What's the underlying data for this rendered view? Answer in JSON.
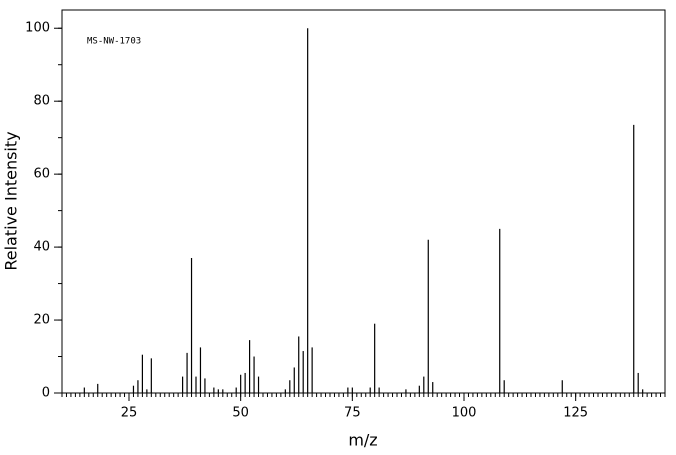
{
  "chart_data": {
    "type": "bar",
    "annotation": "MS-NW-1703",
    "x_label": "m/z",
    "y_label": "Relative Intensity",
    "x": [
      15,
      18,
      26,
      27,
      28,
      29,
      30,
      37,
      38,
      39,
      40,
      41,
      42,
      44,
      45,
      46,
      49,
      50,
      51,
      52,
      53,
      54,
      60,
      61,
      62,
      63,
      64,
      65,
      66,
      74,
      75,
      79,
      80,
      81,
      87,
      90,
      91,
      92,
      93,
      108,
      109,
      122,
      138,
      139,
      140
    ],
    "values": [
      1.5,
      2.5,
      2,
      3.5,
      10.5,
      1,
      9.5,
      4.5,
      11,
      37,
      4.5,
      12.5,
      4,
      1.5,
      1,
      1,
      1.5,
      5,
      5.5,
      14.5,
      10,
      4.5,
      1,
      3.5,
      7,
      15.5,
      11.5,
      100,
      12.5,
      1.5,
      1.5,
      1.5,
      19,
      1.5,
      1,
      2,
      4.5,
      42,
      3,
      45,
      3.5,
      3.5,
      73.5,
      5.5,
      1
    ],
    "color": "#000000",
    "xlim": [
      10,
      145
    ],
    "ylim": [
      0,
      105
    ],
    "xticks": [
      25,
      50,
      75,
      100,
      125
    ],
    "yticks": [
      0,
      20,
      40,
      60,
      80,
      100
    ],
    "minor_xtick_step": 1,
    "minor_ytick_step": 10
  }
}
